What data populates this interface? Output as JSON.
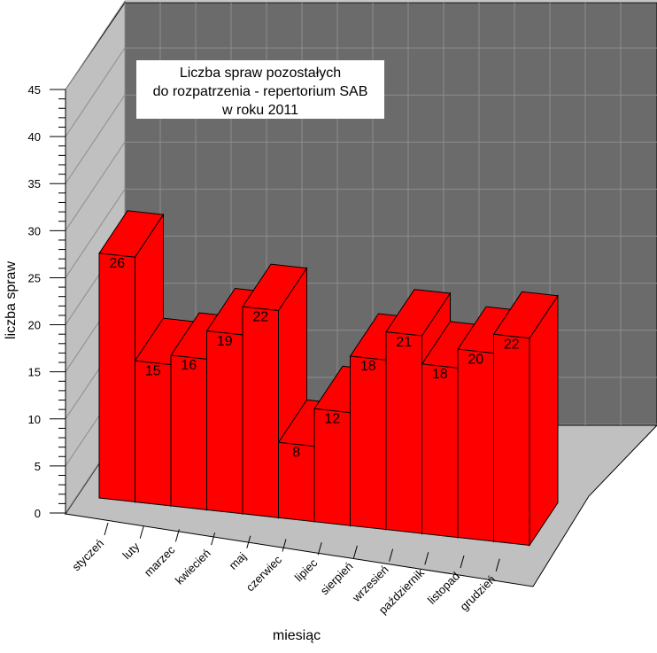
{
  "chart_data": {
    "type": "bar",
    "title": [
      "Liczba spraw pozostałych",
      "do rozpatrzenia - repertorium SAB",
      "w roku 2011"
    ],
    "xlabel": "miesiąc",
    "ylabel": "liczba spraw",
    "ylim": [
      0,
      45
    ],
    "yticks": [
      "0",
      "5",
      "10",
      "15",
      "20",
      "25",
      "30",
      "35",
      "40",
      "45"
    ],
    "categories": [
      "styczeń",
      "luty",
      "marzec",
      "kwiecień",
      "maj",
      "czerwiec",
      "lipiec",
      "sierpień",
      "wrzesień",
      "październik",
      "listopad",
      "grudzień"
    ],
    "values": [
      26,
      15,
      16,
      19,
      22,
      8,
      12,
      18,
      21,
      18,
      20,
      22
    ],
    "value_labels": [
      "26",
      "15",
      "16",
      "19",
      "22",
      "8",
      "12",
      "18",
      "21",
      "18",
      "20",
      "22"
    ],
    "grid": true,
    "colors": {
      "bar_front": "#ff0000",
      "bar_side": "#ff0000",
      "back_wall": "#6b6b6b",
      "side_wall": "#c0c0c0",
      "floor": "#c0c0c0",
      "grid": "#8c8c8c"
    }
  }
}
